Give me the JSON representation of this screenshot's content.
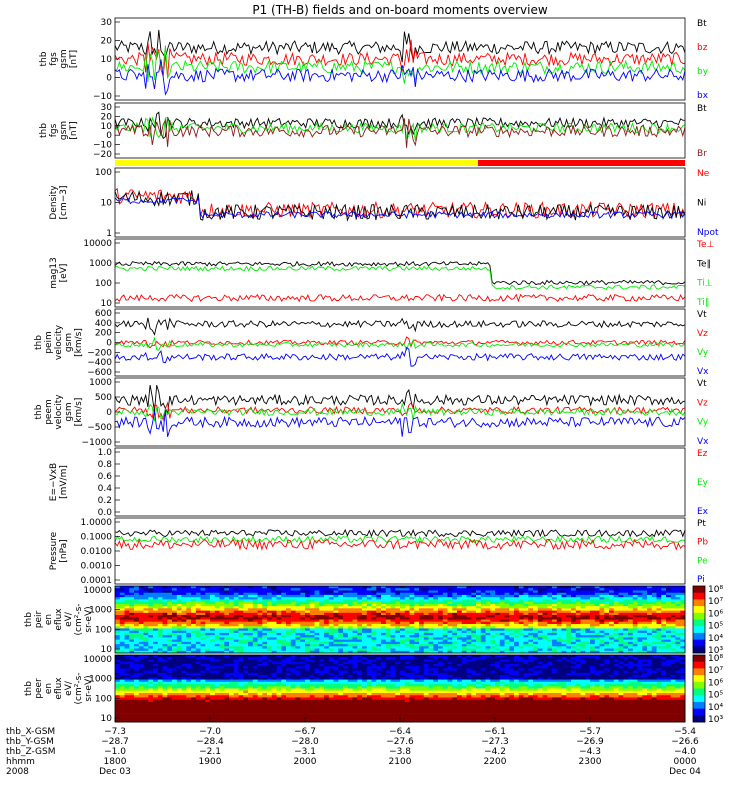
{
  "title": "P1 (TH-B) fields and on-board moments overview",
  "colors": {
    "black": "#000000",
    "red": "#ff0000",
    "green": "#00ee00",
    "blue": "#0000ff",
    "darkred": "#8b1a1a",
    "yellow": "#ffff00"
  },
  "chart_data": [
    {
      "type": "line",
      "ylabel": [
        "thb",
        "fgs",
        "gsm",
        "[nT]"
      ],
      "ylim": [
        -20,
        30
      ],
      "yticks": [
        "30",
        "20",
        "10",
        "0",
        "−10"
      ],
      "legend": [
        "Bt",
        "bz",
        "by",
        "bx"
      ],
      "legend_colors": [
        "black",
        "red",
        "green",
        "blue"
      ],
      "series": [
        {
          "name": "Bt",
          "color": "black",
          "level": 12,
          "noise": 4
        },
        {
          "name": "bz",
          "color": "red",
          "level": 5,
          "noise": 4
        },
        {
          "name": "by",
          "color": "green",
          "level": 0,
          "noise": 4
        },
        {
          "name": "bx",
          "color": "blue",
          "level": -5,
          "noise": 4
        }
      ]
    },
    {
      "type": "line",
      "ylabel": [
        "thb",
        "fgs",
        "gsm",
        "[nT]"
      ],
      "ylim": [
        -25,
        30
      ],
      "yticks": [
        "30",
        "20",
        "10",
        "0",
        "−10",
        "−20"
      ],
      "legend": [
        "Bt",
        "Br"
      ],
      "legend_colors": [
        "black",
        "darkred"
      ],
      "series": [
        {
          "name": "Bt",
          "color": "black",
          "level": 10,
          "noise": 5
        },
        {
          "name": "by",
          "color": "green",
          "level": 5,
          "noise": 5
        },
        {
          "name": "Br",
          "color": "darkred",
          "level": 2,
          "noise": 6
        }
      ]
    },
    {
      "type": "bar",
      "ylabel": [],
      "legend": [],
      "colorbar": {
        "yellow_until": "2148",
        "red_after": "2148"
      }
    },
    {
      "type": "line",
      "log": true,
      "ylabel": [
        "Density",
        "[cm−3]"
      ],
      "ylim": [
        1,
        150
      ],
      "yticks": [
        "100",
        "10",
        "1"
      ],
      "legend": [
        "Ne",
        "Ni",
        "Npot"
      ],
      "legend_colors": [
        "red",
        "black",
        "blue"
      ],
      "series": [
        {
          "name": "Ne",
          "color": "red",
          "level": 7,
          "noise": 0.25
        },
        {
          "name": "Ni",
          "color": "black",
          "level": 6,
          "noise": 0.25
        },
        {
          "name": "Npot",
          "color": "blue",
          "level": 5,
          "noise": 0.1
        }
      ]
    },
    {
      "type": "line",
      "log": true,
      "ylabel": [
        "mag13",
        "[eV]"
      ],
      "ylim": [
        10,
        10000
      ],
      "yticks": [
        "10000",
        "1000",
        "100",
        "10"
      ],
      "legend": [
        "Te⊥",
        "Te∥",
        "Ti⊥",
        "Ti∥"
      ],
      "legend_colors": [
        "red",
        "black",
        "green",
        "green"
      ],
      "series": [
        {
          "name": "Te∥",
          "color": "black",
          "level": 800,
          "noise": 0.1
        },
        {
          "name": "Ti∥",
          "color": "green",
          "level": 500,
          "noise": 0.1
        },
        {
          "name": "Te⊥",
          "color": "red",
          "level": 25,
          "noise": 0.15
        }
      ]
    },
    {
      "type": "line",
      "ylabel": [
        "thb",
        "peim",
        "velocity",
        "gsm",
        "[km/s]"
      ],
      "ylim": [
        -600,
        600
      ],
      "yticks": [
        "600",
        "400",
        "200",
        "0",
        "−200",
        "−400",
        "−600"
      ],
      "legend": [
        "Vt",
        "Vz",
        "Vy",
        "Vx"
      ],
      "legend_colors": [
        "black",
        "red",
        "green",
        "blue"
      ],
      "series": [
        {
          "name": "Vt",
          "color": "black",
          "level": 330,
          "noise": 60
        },
        {
          "name": "Vz",
          "color": "red",
          "level": 0,
          "noise": 40
        },
        {
          "name": "Vy",
          "color": "green",
          "level": -40,
          "noise": 40
        },
        {
          "name": "Vx",
          "color": "blue",
          "level": -260,
          "noise": 60
        }
      ]
    },
    {
      "type": "line",
      "ylabel": [
        "thb",
        "peem",
        "velocity",
        "gsm",
        "[km/s]"
      ],
      "ylim": [
        -1000,
        1000
      ],
      "yticks": [
        "1000",
        "500",
        "0",
        "−500",
        "−1000"
      ],
      "legend": [
        "Vt",
        "Vz",
        "Vy",
        "Vx"
      ],
      "legend_colors": [
        "black",
        "red",
        "green",
        "blue"
      ],
      "series": [
        {
          "name": "Vt",
          "color": "black",
          "level": 350,
          "noise": 150
        },
        {
          "name": "Vz",
          "color": "red",
          "level": 50,
          "noise": 100
        },
        {
          "name": "Vy",
          "color": "green",
          "level": 0,
          "noise": 100
        },
        {
          "name": "Vx",
          "color": "blue",
          "level": -300,
          "noise": 150
        }
      ]
    },
    {
      "type": "line",
      "ylabel": [
        "E=−VxB",
        "[mV/m]"
      ],
      "ylim": [
        0,
        1
      ],
      "yticks": [
        "1.0",
        "0.8",
        "0.6",
        "0.4",
        "0.2",
        "0.0"
      ],
      "legend": [
        "Ez",
        "Ey",
        "Ex"
      ],
      "legend_colors": [
        "red",
        "green",
        "blue"
      ],
      "series": []
    },
    {
      "type": "line",
      "log": true,
      "ylabel": [
        "Pressure",
        "[nPa]"
      ],
      "ylim": [
        0.0001,
        1
      ],
      "yticks": [
        "1.0000",
        "0.1000",
        "0.0100",
        "0.0010",
        "0.0001"
      ],
      "legend": [
        "Pt",
        "Pb",
        "Pe",
        "Pi"
      ],
      "legend_colors": [
        "black",
        "red",
        "green",
        "blue"
      ],
      "series": [
        {
          "name": "Pt",
          "color": "black",
          "level": 0.12,
          "noise": 0.2
        },
        {
          "name": "Pe",
          "color": "green",
          "level": 0.05,
          "noise": 0.2
        },
        {
          "name": "Pb",
          "color": "red",
          "level": 0.025,
          "noise": 0.3
        }
      ]
    },
    {
      "type": "heatmap",
      "ylabel": [
        "thb",
        "peir",
        "en",
        "eflux",
        "eV/",
        "(cm²-s-",
        "sr-eV)"
      ],
      "ylim": [
        10,
        20000
      ],
      "yticks": [
        "10000",
        "1000",
        "100",
        "10"
      ],
      "colorbar_ticks": [
        "10⁸",
        "10⁷",
        "10⁶",
        "10⁵",
        "10⁴",
        "10³"
      ]
    },
    {
      "type": "heatmap",
      "ylabel": [
        "thb",
        "peer",
        "en",
        "eflux",
        "eV/",
        "(cm²-s-",
        "sr-eV)"
      ],
      "ylim": [
        10,
        20000
      ],
      "yticks": [
        "10000",
        "1000",
        "100",
        "10"
      ],
      "colorbar_ticks": [
        "10⁸",
        "10⁷",
        "10⁶",
        "10⁵",
        "10⁴",
        "10³"
      ]
    }
  ],
  "xaxis": {
    "row_labels": [
      "thb_X-GSM",
      "thb_Y-GSM",
      "thb_Z-GSM",
      "hhmm",
      "2008"
    ],
    "ticks": [
      {
        "x": [
          "−7.3",
          "−28.7",
          "−1.0",
          "1800",
          "Dec 03"
        ]
      },
      {
        "x": [
          "−7.0",
          "−28.4",
          "−2.1",
          "1900",
          ""
        ]
      },
      {
        "x": [
          "−6.7",
          "−28.0",
          "−3.1",
          "2000",
          ""
        ]
      },
      {
        "x": [
          "−6.4",
          "−27.6",
          "−3.8",
          "2100",
          ""
        ]
      },
      {
        "x": [
          "−6.1",
          "−27.3",
          "−4.2",
          "2200",
          ""
        ]
      },
      {
        "x": [
          "−5.7",
          "−26.9",
          "−4.3",
          "2300",
          ""
        ]
      },
      {
        "x": [
          "−5.4",
          "−26.6",
          "−4.0",
          "0000",
          "Dec 04"
        ]
      }
    ]
  }
}
